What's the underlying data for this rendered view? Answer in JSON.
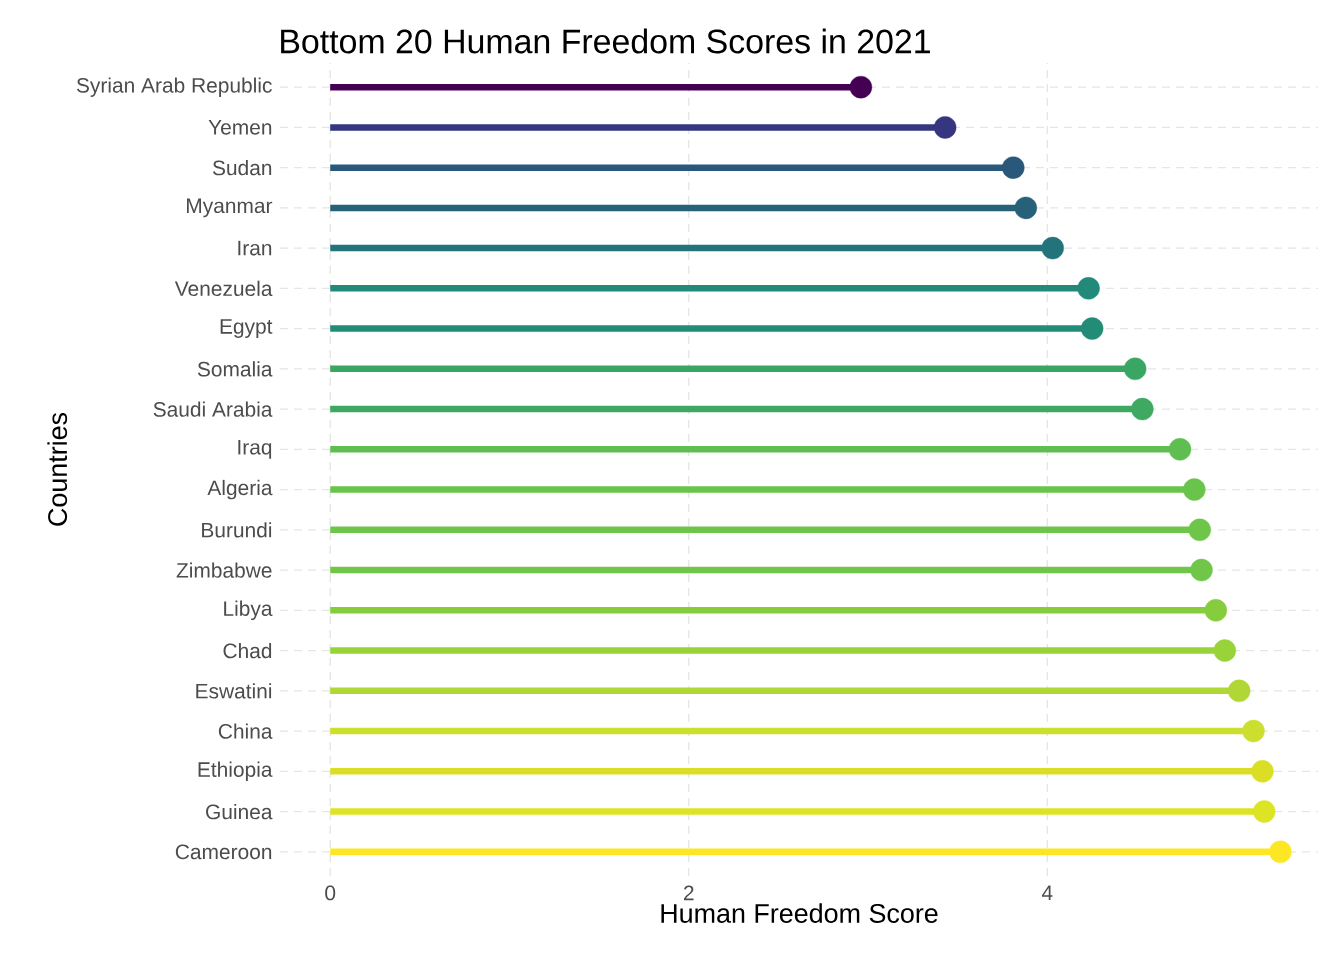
{
  "chart_data": {
    "type": "lollipop",
    "title": "Bottom 20 Human Freedom Scores in 2021",
    "xlabel": "Human Freedom Score",
    "ylabel": "Countries",
    "orientation": "horizontal",
    "categories": [
      "Syrian Arab Republic",
      "Yemen",
      "Sudan",
      "Myanmar",
      "Iran",
      "Venezuela",
      "Egypt",
      "Somalia",
      "Saudi Arabia",
      "Iraq",
      "Algeria",
      "Burundi",
      "Zimbabwe",
      "Libya",
      "Chad",
      "Eswatini",
      "China",
      "Ethiopia",
      "Guinea",
      "Cameroon"
    ],
    "values": [
      2.96,
      3.43,
      3.81,
      3.88,
      4.03,
      4.23,
      4.25,
      4.49,
      4.53,
      4.74,
      4.82,
      4.85,
      4.86,
      4.94,
      4.99,
      5.07,
      5.15,
      5.2,
      5.21,
      5.3
    ],
    "colors": [
      "#440154",
      "#35367f",
      "#29587a",
      "#276079",
      "#24737a",
      "#228a78",
      "#238c76",
      "#3aa664",
      "#3fa961",
      "#5ebf50",
      "#6ac44b",
      "#6dc649",
      "#6fc648",
      "#86cd3e",
      "#98d33a",
      "#b0d736",
      "#cddf2e",
      "#dadf26",
      "#dde325",
      "#fde725"
    ],
    "xlim": [
      -0.28,
      5.51
    ],
    "xticks": [
      0,
      2,
      4
    ],
    "grid": true
  }
}
